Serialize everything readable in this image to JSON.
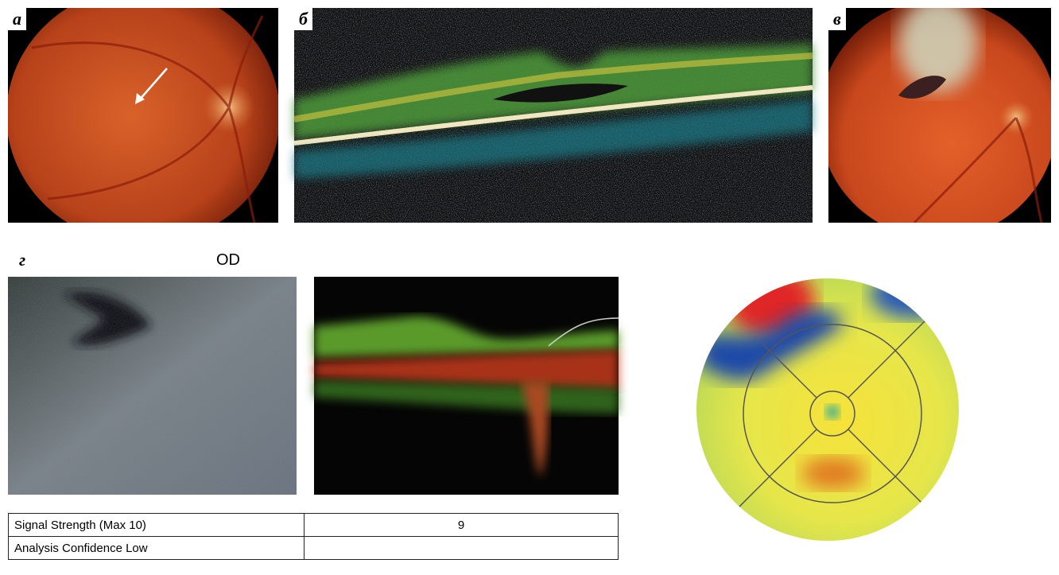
{
  "panels": {
    "a": "а",
    "b": "б",
    "c": "в",
    "d": "г"
  },
  "eye": "OD",
  "table": {
    "rows": [
      [
        "Signal Strength (Max 10)",
        9
      ],
      [
        "Analysis Confidence Low"
      ]
    ]
  }
}
